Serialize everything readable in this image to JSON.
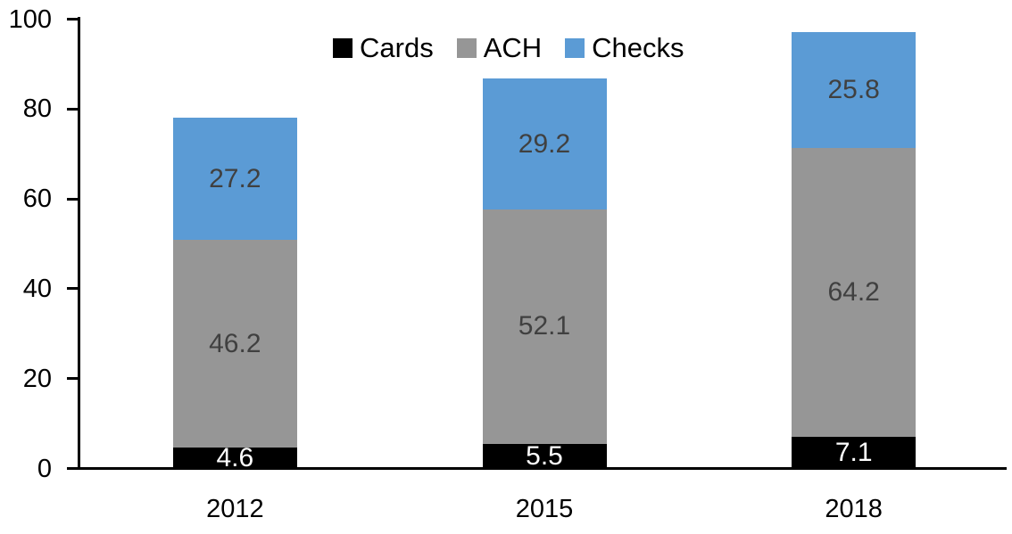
{
  "chart_data": {
    "type": "bar",
    "stacked": true,
    "categories": [
      "2012",
      "2015",
      "2018"
    ],
    "series": [
      {
        "name": "Cards",
        "color": "#000000",
        "label_color": "#ffffff",
        "values": [
          4.6,
          5.5,
          7.1
        ]
      },
      {
        "name": "ACH",
        "color": "#969696",
        "label_color": "#404040",
        "values": [
          46.2,
          52.1,
          64.2
        ]
      },
      {
        "name": "Checks",
        "color": "#5B9BD5",
        "label_color": "#404040",
        "values": [
          27.2,
          29.2,
          25.8
        ]
      }
    ],
    "title": "",
    "xlabel": "",
    "ylabel": "",
    "ylim": [
      0,
      100
    ],
    "y_ticks": [
      0,
      20,
      40,
      60,
      80,
      100
    ],
    "grid": false,
    "legend_position": "top",
    "data_labels": true,
    "axis_color": "#000000",
    "background_color": "#ffffff"
  }
}
